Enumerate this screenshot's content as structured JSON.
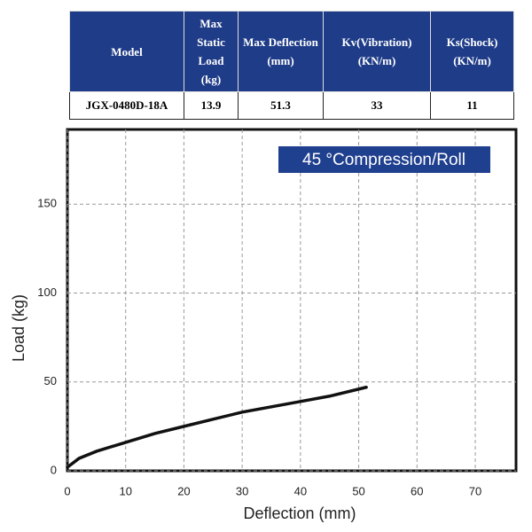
{
  "table": {
    "headers": [
      "Model",
      "Max Static Load (kg)",
      "Max Deflection (mm)",
      "Kv(Vibration) (KN/m)",
      "Ks(Shock) (KN/m)"
    ],
    "rows": [
      [
        "JGX-0480D-18A",
        13.9,
        51.3,
        33,
        11
      ]
    ]
  },
  "chart_data": {
    "type": "line",
    "annotation": "45 °Compression/Roll",
    "x_label": "Deflection (mm)",
    "y_label": "Load (kg)",
    "x": [
      0,
      2,
      5,
      10,
      15,
      20,
      25,
      30,
      35,
      40,
      45,
      51.3
    ],
    "values": [
      2,
      7,
      11,
      16,
      21,
      25,
      29,
      33,
      36,
      39,
      42,
      47
    ],
    "color": "#111111",
    "xlim": [
      0,
      77
    ],
    "ylim": [
      0,
      192
    ],
    "xticks": [
      0,
      10,
      20,
      30,
      40,
      50,
      60,
      70
    ],
    "yticks": [
      0,
      50,
      100,
      150
    ],
    "grid": true
  }
}
